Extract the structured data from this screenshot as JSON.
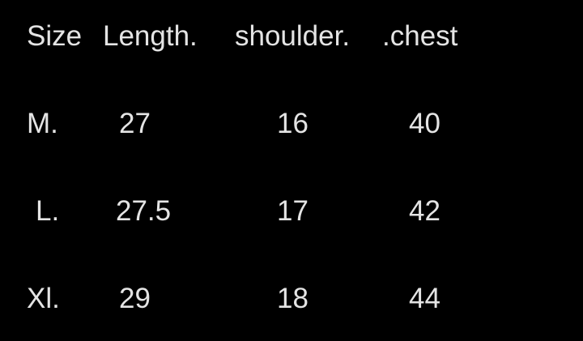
{
  "table": {
    "headers": [
      "Size",
      "Length.",
      "shoulder.",
      ".chest"
    ],
    "rows": [
      [
        "M.",
        "27",
        "16",
        "40"
      ],
      [
        "L.",
        "27.5",
        "17",
        "42"
      ],
      [
        "Xl.",
        "29",
        "18",
        "44"
      ]
    ]
  },
  "colors": {
    "background": "#000000",
    "text": "#e4e4e4"
  }
}
